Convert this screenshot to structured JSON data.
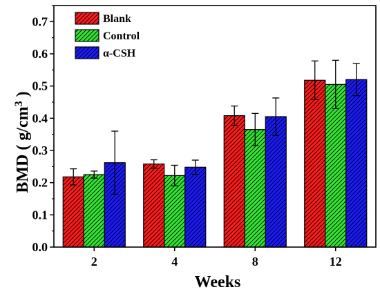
{
  "chart_data": {
    "type": "bar",
    "categories": [
      "2",
      "4",
      "8",
      "12"
    ],
    "series": [
      {
        "name": "Blank",
        "color": "#ff1a1a",
        "values": [
          0.218,
          0.258,
          0.408,
          0.518
        ],
        "errors": [
          0.025,
          0.013,
          0.03,
          0.06
        ]
      },
      {
        "name": "Control",
        "color": "#33e633",
        "values": [
          0.225,
          0.222,
          0.365,
          0.505
        ],
        "errors": [
          0.011,
          0.032,
          0.05,
          0.075
        ]
      },
      {
        "name": "α-CSH",
        "color": "#1a1aff",
        "values": [
          0.262,
          0.248,
          0.405,
          0.52
        ],
        "errors": [
          0.098,
          0.022,
          0.058,
          0.05
        ]
      }
    ],
    "xlabel": "Weeks",
    "ylabel_main": "BMD ( g/cm",
    "ylabel_sup": "3",
    "ylabel_end": " )",
    "ylim": [
      0.0,
      0.75
    ],
    "yticks": [
      "0.0",
      "0.1",
      "0.2",
      "0.3",
      "0.4",
      "0.5",
      "0.6",
      "0.7"
    ],
    "legend_position": "top-left",
    "grid": false,
    "bar_fill": "diagonal-hatch"
  }
}
